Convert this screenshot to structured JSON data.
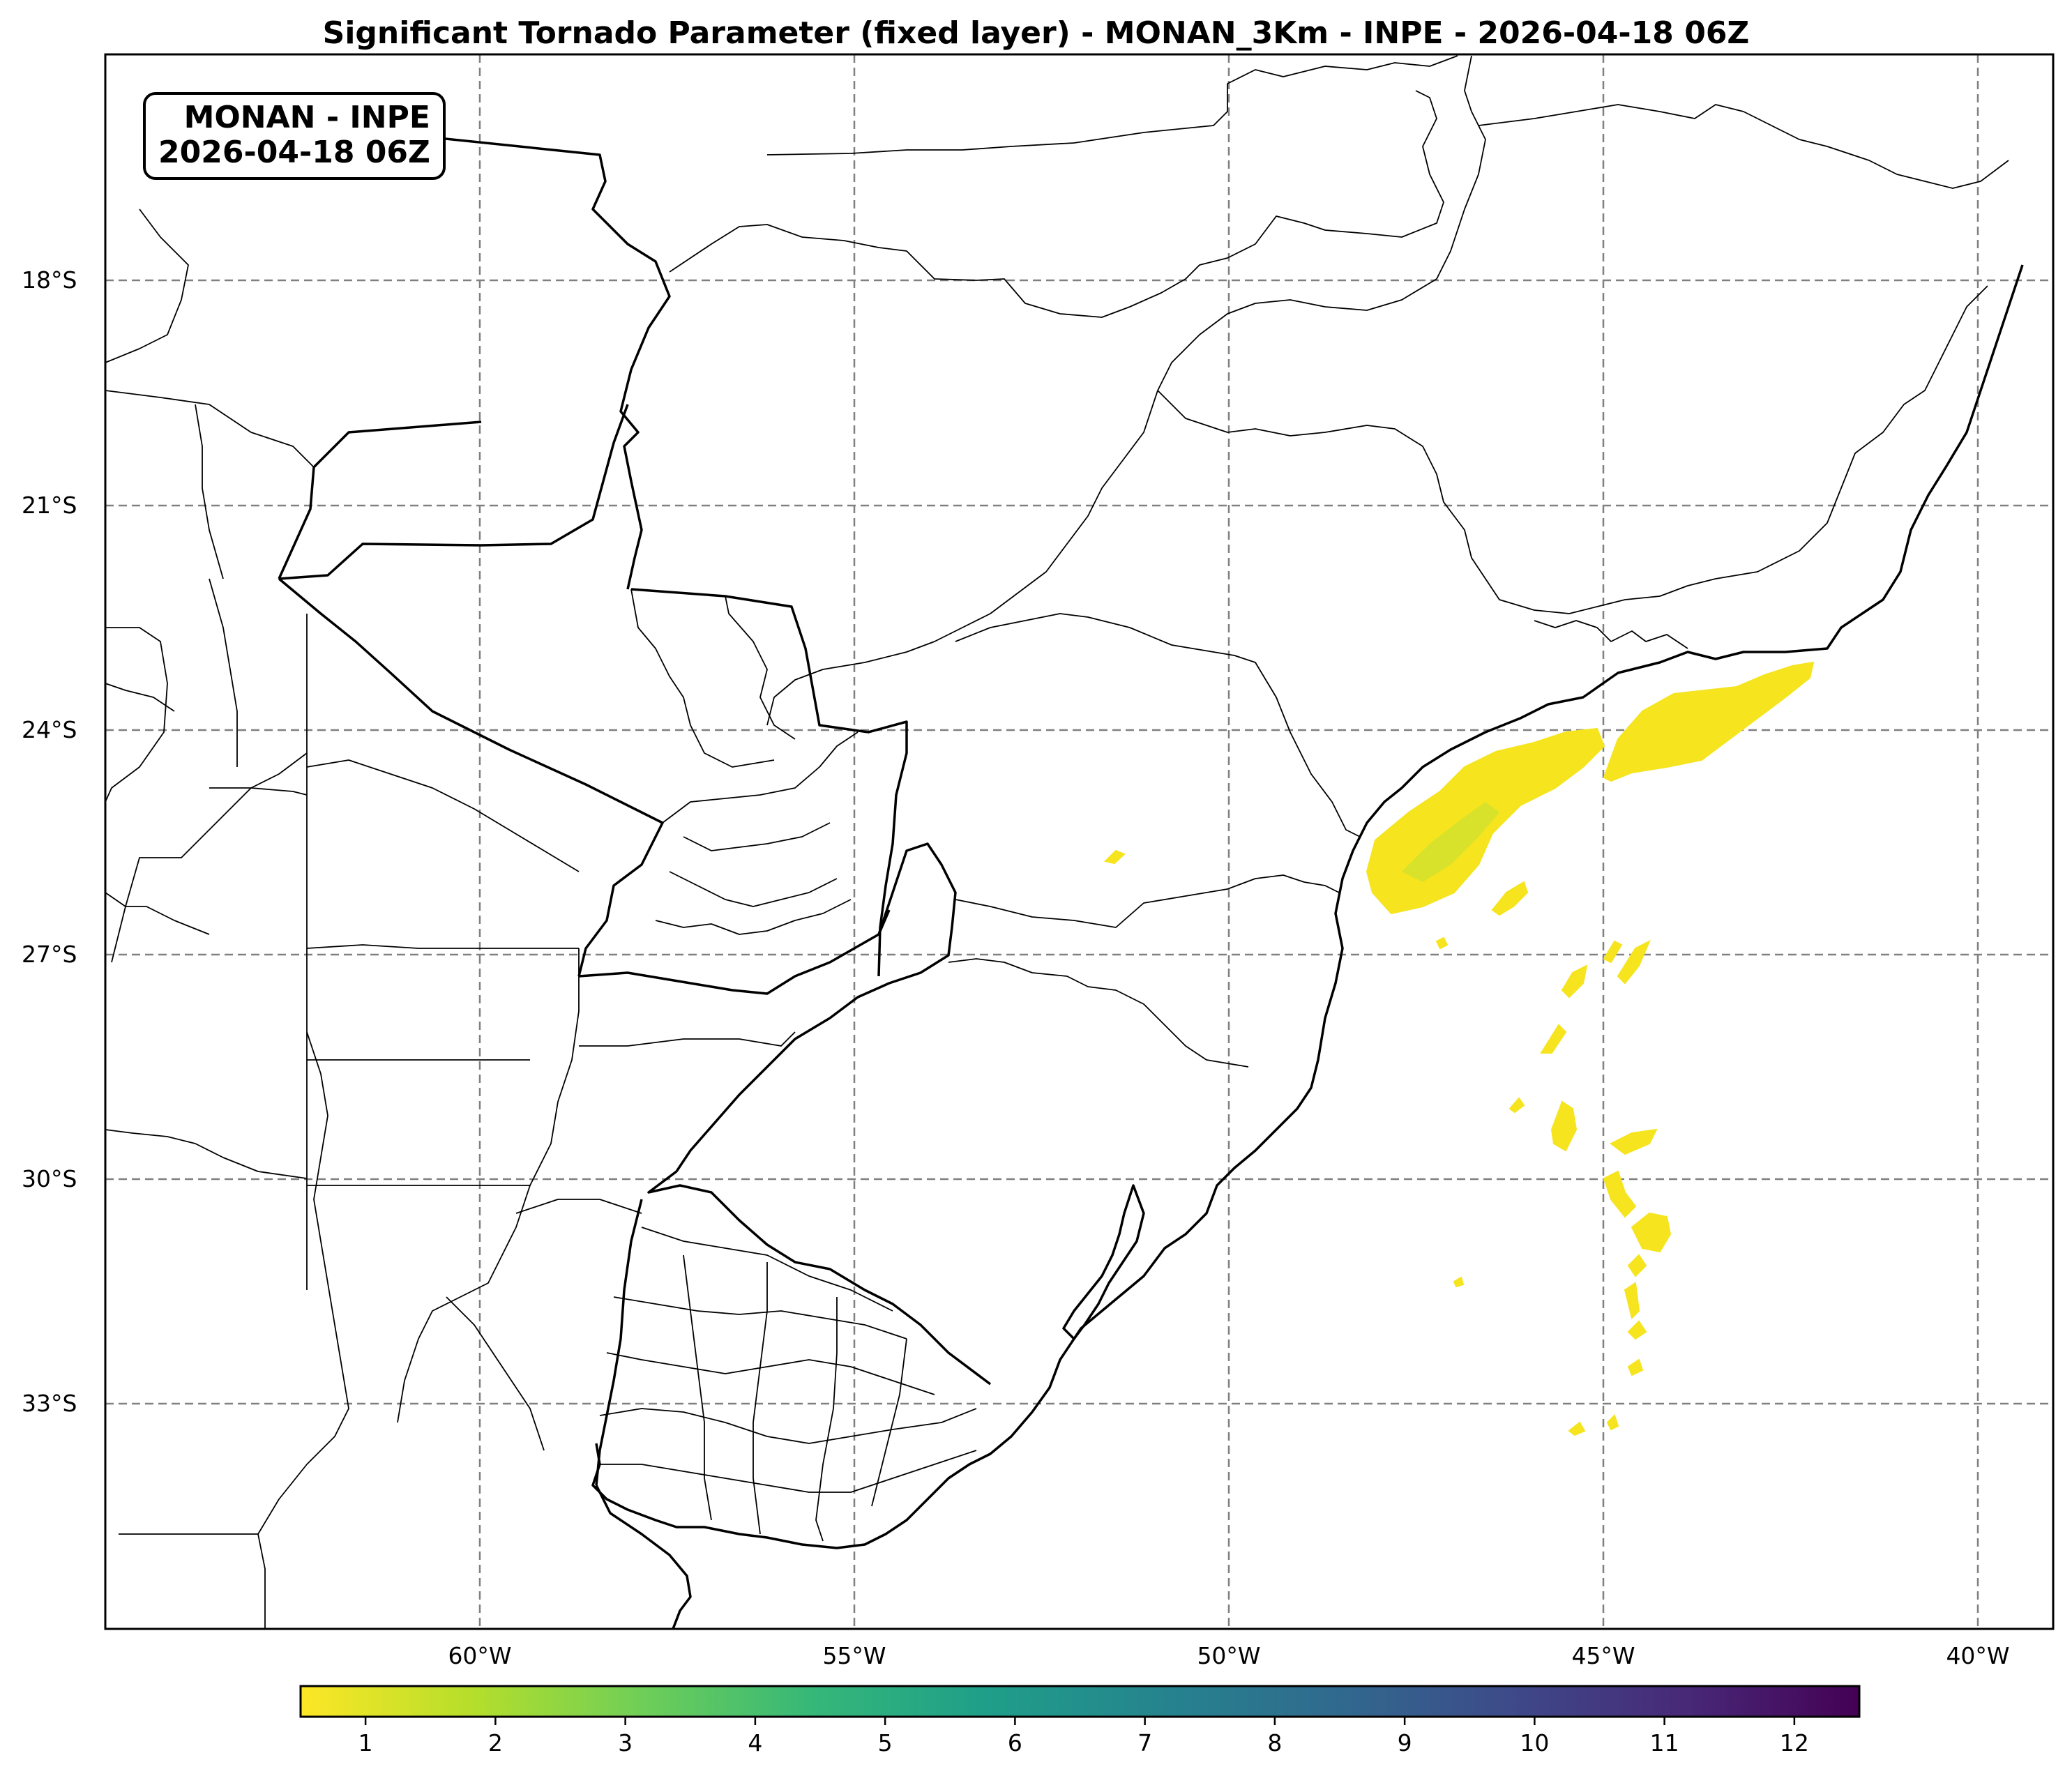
{
  "title": "Significant Tornado Parameter (fixed layer) - MONAN_3Km - INPE - 2026-04-18 06Z",
  "stamp": {
    "line1": "MONAN - INPE",
    "line2": "2026-04-18 06Z"
  },
  "axes": {
    "lat_labels": [
      "18°S",
      "21°S",
      "24°S",
      "27°S",
      "30°S",
      "33°S"
    ],
    "lon_labels": [
      "60°W",
      "55°W",
      "50°W",
      "45°W",
      "40°W"
    ],
    "extent": {
      "lon_min": -65,
      "lon_max": -39,
      "lat_min": -36.5,
      "lat_max": -15.5
    },
    "gridlines": "dashed gray"
  },
  "colorbar": {
    "colormap": "viridis_r",
    "range": [
      0.5,
      12.5
    ],
    "tick_labels": [
      "1",
      "2",
      "3",
      "4",
      "5",
      "6",
      "7",
      "8",
      "9",
      "10",
      "11",
      "12"
    ],
    "colors": [
      "#fde725",
      "#b5de2b",
      "#6ece58",
      "#35b779",
      "#1f9e89",
      "#26828e",
      "#31688e",
      "#3e4989",
      "#482878",
      "#440154"
    ]
  },
  "field_color": "#f5e41e",
  "field_color_core": "#d8e22a"
}
